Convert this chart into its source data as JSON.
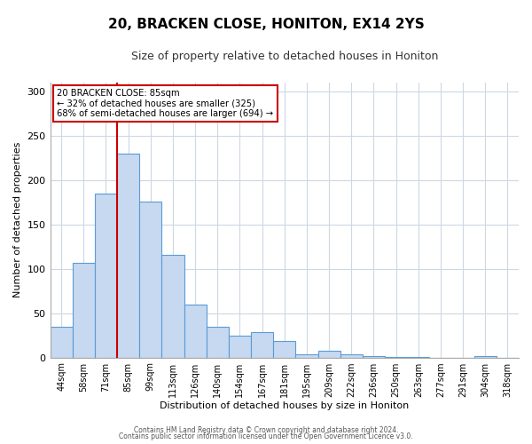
{
  "title": "20, BRACKEN CLOSE, HONITON, EX14 2YS",
  "subtitle": "Size of property relative to detached houses in Honiton",
  "xlabel": "Distribution of detached houses by size in Honiton",
  "ylabel": "Number of detached properties",
  "bar_labels": [
    "44sqm",
    "58sqm",
    "71sqm",
    "85sqm",
    "99sqm",
    "113sqm",
    "126sqm",
    "140sqm",
    "154sqm",
    "167sqm",
    "181sqm",
    "195sqm",
    "209sqm",
    "222sqm",
    "236sqm",
    "250sqm",
    "263sqm",
    "277sqm",
    "291sqm",
    "304sqm",
    "318sqm"
  ],
  "bar_values": [
    35,
    107,
    185,
    230,
    176,
    116,
    60,
    35,
    25,
    29,
    19,
    4,
    8,
    4,
    2,
    1,
    1,
    0,
    0,
    2,
    0
  ],
  "bar_color": "#c6d9f0",
  "bar_edge_color": "#5b9bd5",
  "vline_color": "#cc0000",
  "vline_index": 3,
  "annotation_title": "20 BRACKEN CLOSE: 85sqm",
  "annotation_line1": "← 32% of detached houses are smaller (325)",
  "annotation_line2": "68% of semi-detached houses are larger (694) →",
  "annotation_box_edge": "#cc0000",
  "ylim": [
    0,
    310
  ],
  "yticks": [
    0,
    50,
    100,
    150,
    200,
    250,
    300
  ],
  "footer1": "Contains HM Land Registry data © Crown copyright and database right 2024.",
  "footer2": "Contains public sector information licensed under the Open Government Licence v3.0.",
  "background_color": "#ffffff",
  "grid_color": "#cdd8e3",
  "title_fontsize": 11,
  "subtitle_fontsize": 9
}
